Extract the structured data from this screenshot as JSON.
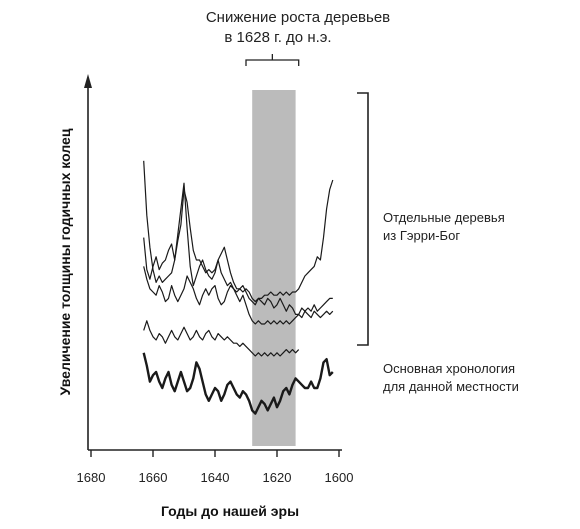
{
  "chart_data": {
    "type": "line",
    "title_lines": [
      "Снижение роста деревьев",
      "в 1628 г. до н.э."
    ],
    "xlabel": "Годы до нашей эры",
    "ylabel": "Увеличение толщины годичных колец",
    "x_direction": "descending",
    "xlim": [
      1680,
      1600
    ],
    "ylim": [
      0,
      1
    ],
    "x_ticks": [
      1680,
      1660,
      1640,
      1620,
      1600
    ],
    "highlight_band": {
      "from": 1628,
      "to": 1614,
      "color": "#bbbbbb"
    },
    "brace_range": [
      1630,
      1613
    ],
    "annotations": [
      {
        "id": "individual",
        "lines": [
          "Отдельные деревья",
          "из Гэрри-Бог"
        ]
      },
      {
        "id": "master",
        "lines": [
          "Основная хронология",
          "для данной местности"
        ]
      }
    ],
    "series": [
      {
        "group": "individual",
        "width": 1.2,
        "points": [
          [
            1663,
            0.81
          ],
          [
            1662,
            0.64
          ],
          [
            1661,
            0.54
          ],
          [
            1660,
            0.47
          ],
          [
            1659,
            0.43
          ],
          [
            1658,
            0.45
          ],
          [
            1657,
            0.43
          ],
          [
            1656,
            0.44
          ],
          [
            1655,
            0.45
          ],
          [
            1654,
            0.46
          ],
          [
            1653,
            0.5
          ],
          [
            1652,
            0.56
          ],
          [
            1651,
            0.61
          ],
          [
            1650,
            0.72
          ],
          [
            1649,
            0.68
          ],
          [
            1648,
            0.6
          ],
          [
            1647,
            0.53
          ],
          [
            1646,
            0.5
          ],
          [
            1645,
            0.5
          ],
          [
            1644,
            0.48
          ],
          [
            1643,
            0.46
          ],
          [
            1642,
            0.47
          ],
          [
            1641,
            0.46
          ],
          [
            1640,
            0.47
          ],
          [
            1639,
            0.5
          ],
          [
            1638,
            0.52
          ],
          [
            1637,
            0.54
          ],
          [
            1636,
            0.5
          ],
          [
            1635,
            0.46
          ],
          [
            1634,
            0.43
          ],
          [
            1633,
            0.41
          ],
          [
            1632,
            0.41
          ],
          [
            1631,
            0.4
          ],
          [
            1630,
            0.41
          ],
          [
            1629,
            0.4
          ],
          [
            1628,
            0.38
          ],
          [
            1627,
            0.37
          ],
          [
            1626,
            0.38
          ],
          [
            1625,
            0.38
          ],
          [
            1624,
            0.39
          ],
          [
            1623,
            0.39
          ],
          [
            1622,
            0.4
          ],
          [
            1621,
            0.39
          ],
          [
            1620,
            0.39
          ],
          [
            1619,
            0.4
          ],
          [
            1618,
            0.39
          ],
          [
            1617,
            0.4
          ],
          [
            1616,
            0.39
          ],
          [
            1615,
            0.4
          ],
          [
            1614,
            0.4
          ],
          [
            1613,
            0.41
          ],
          [
            1612,
            0.43
          ],
          [
            1611,
            0.45
          ],
          [
            1610,
            0.46
          ],
          [
            1609,
            0.47
          ],
          [
            1608,
            0.48
          ],
          [
            1607,
            0.51
          ],
          [
            1606,
            0.5
          ],
          [
            1605,
            0.57
          ],
          [
            1604,
            0.66
          ],
          [
            1603,
            0.72
          ],
          [
            1602,
            0.75
          ]
        ]
      },
      {
        "group": "individual",
        "width": 1.2,
        "points": [
          [
            1663,
            0.57
          ],
          [
            1662,
            0.47
          ],
          [
            1661,
            0.44
          ],
          [
            1660,
            0.48
          ],
          [
            1659,
            0.51
          ],
          [
            1658,
            0.47
          ],
          [
            1657,
            0.49
          ],
          [
            1656,
            0.5
          ],
          [
            1655,
            0.53
          ],
          [
            1654,
            0.55
          ],
          [
            1653,
            0.5
          ],
          [
            1652,
            0.58
          ],
          [
            1651,
            0.66
          ],
          [
            1650,
            0.74
          ],
          [
            1649,
            0.6
          ],
          [
            1648,
            0.48
          ],
          [
            1647,
            0.42
          ],
          [
            1646,
            0.45
          ],
          [
            1645,
            0.48
          ],
          [
            1644,
            0.5
          ],
          [
            1643,
            0.47
          ],
          [
            1642,
            0.45
          ],
          [
            1641,
            0.44
          ],
          [
            1640,
            0.46
          ],
          [
            1639,
            0.5
          ],
          [
            1638,
            0.46
          ],
          [
            1637,
            0.44
          ],
          [
            1636,
            0.42
          ],
          [
            1635,
            0.43
          ],
          [
            1634,
            0.41
          ],
          [
            1633,
            0.4
          ],
          [
            1632,
            0.41
          ],
          [
            1631,
            0.42
          ],
          [
            1630,
            0.4
          ],
          [
            1629,
            0.38
          ],
          [
            1628,
            0.37
          ],
          [
            1627,
            0.36
          ],
          [
            1626,
            0.38
          ],
          [
            1625,
            0.37
          ],
          [
            1624,
            0.36
          ],
          [
            1623,
            0.38
          ],
          [
            1622,
            0.37
          ],
          [
            1621,
            0.35
          ],
          [
            1620,
            0.36
          ],
          [
            1619,
            0.38
          ],
          [
            1618,
            0.36
          ],
          [
            1617,
            0.34
          ],
          [
            1616,
            0.36
          ],
          [
            1615,
            0.35
          ],
          [
            1614,
            0.33
          ],
          [
            1613,
            0.33
          ],
          [
            1612,
            0.35
          ],
          [
            1611,
            0.34
          ],
          [
            1610,
            0.35
          ],
          [
            1609,
            0.34
          ],
          [
            1608,
            0.36
          ],
          [
            1607,
            0.34
          ],
          [
            1606,
            0.35
          ],
          [
            1605,
            0.36
          ],
          [
            1604,
            0.37
          ],
          [
            1603,
            0.38
          ],
          [
            1602,
            0.38
          ]
        ]
      },
      {
        "group": "individual",
        "width": 1.2,
        "points": [
          [
            1663,
            0.48
          ],
          [
            1662,
            0.44
          ],
          [
            1661,
            0.41
          ],
          [
            1660,
            0.4
          ],
          [
            1659,
            0.39
          ],
          [
            1658,
            0.42
          ],
          [
            1657,
            0.4
          ],
          [
            1656,
            0.37
          ],
          [
            1655,
            0.38
          ],
          [
            1654,
            0.42
          ],
          [
            1653,
            0.39
          ],
          [
            1652,
            0.37
          ],
          [
            1651,
            0.39
          ],
          [
            1650,
            0.41
          ],
          [
            1649,
            0.45
          ],
          [
            1648,
            0.43
          ],
          [
            1647,
            0.41
          ],
          [
            1646,
            0.38
          ],
          [
            1645,
            0.36
          ],
          [
            1644,
            0.39
          ],
          [
            1643,
            0.41
          ],
          [
            1642,
            0.39
          ],
          [
            1641,
            0.41
          ],
          [
            1640,
            0.42
          ],
          [
            1639,
            0.38
          ],
          [
            1638,
            0.36
          ],
          [
            1637,
            0.37
          ],
          [
            1636,
            0.4
          ],
          [
            1635,
            0.42
          ],
          [
            1634,
            0.41
          ],
          [
            1633,
            0.39
          ],
          [
            1632,
            0.37
          ],
          [
            1631,
            0.39
          ],
          [
            1630,
            0.36
          ],
          [
            1629,
            0.33
          ],
          [
            1628,
            0.31
          ],
          [
            1627,
            0.3
          ],
          [
            1626,
            0.31
          ],
          [
            1625,
            0.3
          ],
          [
            1624,
            0.3
          ],
          [
            1623,
            0.31
          ],
          [
            1622,
            0.3
          ],
          [
            1621,
            0.31
          ],
          [
            1620,
            0.3
          ],
          [
            1619,
            0.31
          ],
          [
            1618,
            0.3
          ],
          [
            1617,
            0.31
          ],
          [
            1616,
            0.3
          ],
          [
            1615,
            0.31
          ],
          [
            1614,
            0.32
          ],
          [
            1613,
            0.33
          ],
          [
            1612,
            0.32
          ],
          [
            1611,
            0.34
          ],
          [
            1610,
            0.33
          ],
          [
            1609,
            0.32
          ],
          [
            1608,
            0.34
          ],
          [
            1607,
            0.33
          ],
          [
            1606,
            0.32
          ],
          [
            1605,
            0.33
          ],
          [
            1604,
            0.34
          ],
          [
            1603,
            0.33
          ],
          [
            1602,
            0.34
          ]
        ]
      },
      {
        "group": "individual",
        "width": 1.2,
        "points": [
          [
            1663,
            0.28
          ],
          [
            1662,
            0.31
          ],
          [
            1661,
            0.28
          ],
          [
            1660,
            0.26
          ],
          [
            1659,
            0.25
          ],
          [
            1658,
            0.27
          ],
          [
            1657,
            0.26
          ],
          [
            1656,
            0.24
          ],
          [
            1655,
            0.26
          ],
          [
            1654,
            0.28
          ],
          [
            1653,
            0.26
          ],
          [
            1652,
            0.25
          ],
          [
            1651,
            0.27
          ],
          [
            1650,
            0.29
          ],
          [
            1649,
            0.27
          ],
          [
            1648,
            0.25
          ],
          [
            1647,
            0.26
          ],
          [
            1646,
            0.28
          ],
          [
            1645,
            0.26
          ],
          [
            1644,
            0.25
          ],
          [
            1643,
            0.27
          ],
          [
            1642,
            0.28
          ],
          [
            1641,
            0.26
          ],
          [
            1640,
            0.25
          ],
          [
            1639,
            0.27
          ],
          [
            1638,
            0.26
          ],
          [
            1637,
            0.25
          ],
          [
            1636,
            0.26
          ],
          [
            1635,
            0.25
          ],
          [
            1634,
            0.24
          ],
          [
            1633,
            0.24
          ],
          [
            1632,
            0.23
          ],
          [
            1631,
            0.24
          ],
          [
            1630,
            0.23
          ],
          [
            1629,
            0.22
          ],
          [
            1628,
            0.21
          ],
          [
            1627,
            0.2
          ],
          [
            1626,
            0.21
          ],
          [
            1625,
            0.2
          ],
          [
            1624,
            0.21
          ],
          [
            1623,
            0.2
          ],
          [
            1622,
            0.21
          ],
          [
            1621,
            0.2
          ],
          [
            1620,
            0.21
          ],
          [
            1619,
            0.2
          ],
          [
            1618,
            0.21
          ],
          [
            1617,
            0.22
          ],
          [
            1616,
            0.21
          ],
          [
            1615,
            0.22
          ],
          [
            1614,
            0.21
          ],
          [
            1613,
            0.22
          ]
        ]
      },
      {
        "group": "master",
        "width": 2.4,
        "points": [
          [
            1663,
            0.21
          ],
          [
            1662,
            0.17
          ],
          [
            1661,
            0.12
          ],
          [
            1660,
            0.14
          ],
          [
            1659,
            0.15
          ],
          [
            1658,
            0.12
          ],
          [
            1657,
            0.1
          ],
          [
            1656,
            0.13
          ],
          [
            1655,
            0.15
          ],
          [
            1654,
            0.11
          ],
          [
            1653,
            0.09
          ],
          [
            1652,
            0.12
          ],
          [
            1651,
            0.15
          ],
          [
            1650,
            0.12
          ],
          [
            1649,
            0.09
          ],
          [
            1648,
            0.1
          ],
          [
            1647,
            0.13
          ],
          [
            1646,
            0.18
          ],
          [
            1645,
            0.16
          ],
          [
            1644,
            0.12
          ],
          [
            1643,
            0.08
          ],
          [
            1642,
            0.06
          ],
          [
            1641,
            0.08
          ],
          [
            1640,
            0.1
          ],
          [
            1639,
            0.09
          ],
          [
            1638,
            0.06
          ],
          [
            1637,
            0.08
          ],
          [
            1636,
            0.11
          ],
          [
            1635,
            0.12
          ],
          [
            1634,
            0.1
          ],
          [
            1633,
            0.08
          ],
          [
            1632,
            0.07
          ],
          [
            1631,
            0.09
          ],
          [
            1630,
            0.08
          ],
          [
            1629,
            0.06
          ],
          [
            1628,
            0.03
          ],
          [
            1627,
            0.02
          ],
          [
            1626,
            0.04
          ],
          [
            1625,
            0.06
          ],
          [
            1624,
            0.05
          ],
          [
            1623,
            0.03
          ],
          [
            1622,
            0.05
          ],
          [
            1621,
            0.07
          ],
          [
            1620,
            0.04
          ],
          [
            1619,
            0.06
          ],
          [
            1618,
            0.09
          ],
          [
            1617,
            0.1
          ],
          [
            1616,
            0.08
          ],
          [
            1615,
            0.11
          ],
          [
            1614,
            0.13
          ],
          [
            1613,
            0.12
          ],
          [
            1612,
            0.11
          ],
          [
            1611,
            0.1
          ],
          [
            1610,
            0.1
          ],
          [
            1609,
            0.12
          ],
          [
            1608,
            0.1
          ],
          [
            1607,
            0.1
          ],
          [
            1606,
            0.13
          ],
          [
            1605,
            0.18
          ],
          [
            1604,
            0.19
          ],
          [
            1603,
            0.14
          ],
          [
            1602,
            0.15
          ]
        ]
      }
    ]
  }
}
